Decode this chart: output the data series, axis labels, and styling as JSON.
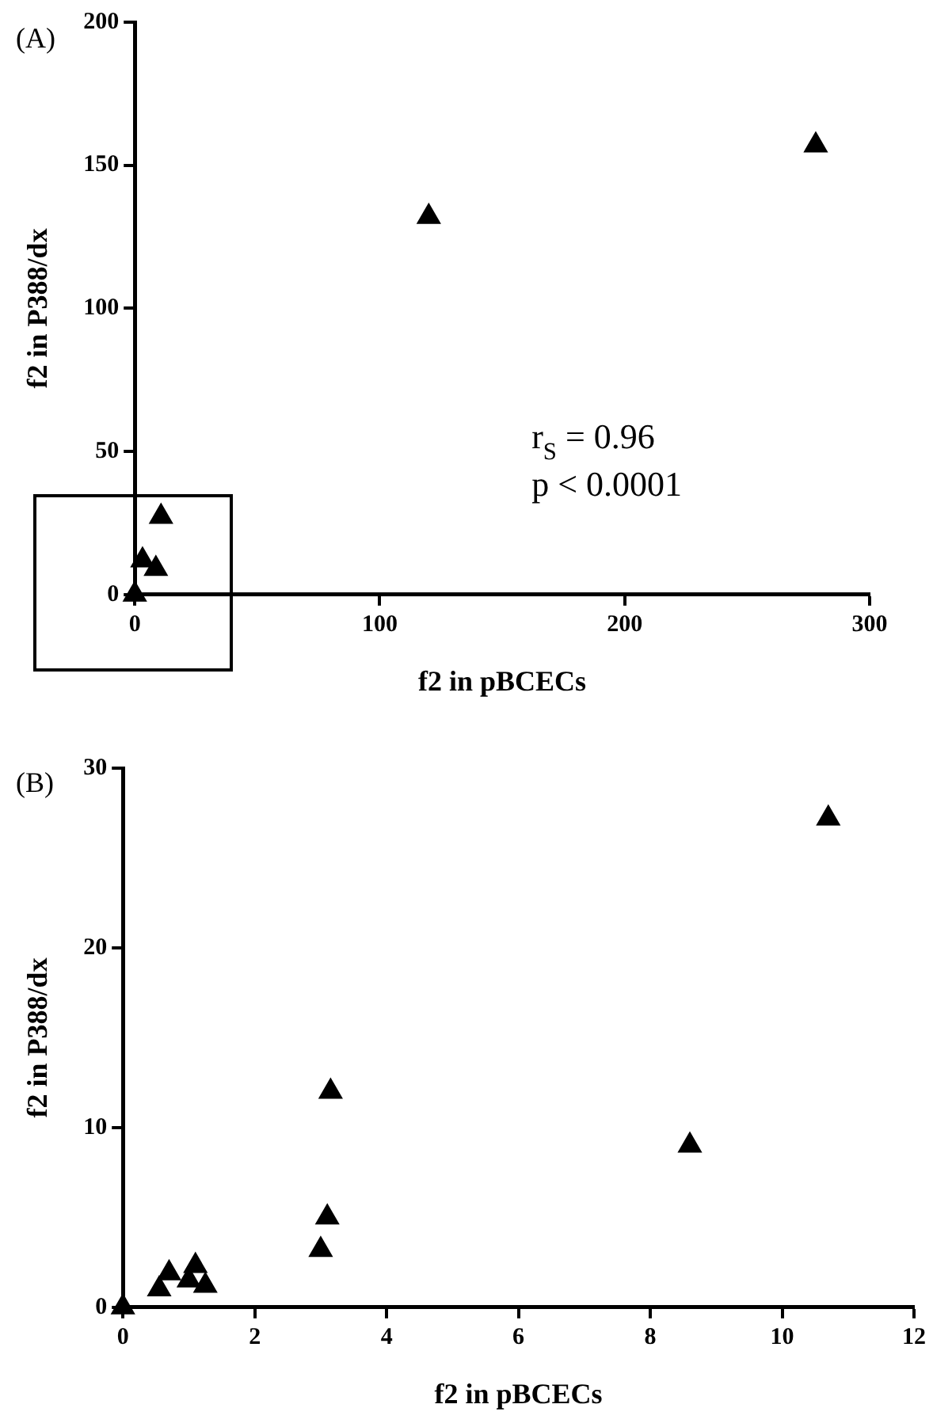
{
  "chart_data": [
    {
      "type": "scatter",
      "title": "(A)",
      "xlabel": "f2 in pBCECs",
      "ylabel": "f2 in P388/dx",
      "color": "#000000",
      "marker": "triangle",
      "x": [
        0,
        3.15,
        8.6,
        10.7,
        120,
        278
      ],
      "values": [
        0,
        12,
        9,
        27.2,
        132,
        157
      ],
      "xlim": [
        0,
        300
      ],
      "xticks": [
        0,
        100,
        200,
        300
      ],
      "ylim": [
        0,
        200
      ],
      "yticks": [
        0,
        50,
        100,
        150,
        200
      ],
      "annotations": [
        "r$_{S}$ = 0.96",
        "p < 0.0001"
      ]
    },
    {
      "type": "scatter",
      "title": "(B)",
      "xlabel": "f2 in pBCECs",
      "ylabel": "f2 in P388/dx",
      "color": "#000000",
      "marker": "triangle",
      "x": [
        0,
        0.55,
        0.7,
        1.0,
        1.1,
        1.25,
        3.0,
        3.1,
        3.15,
        8.6,
        10.7
      ],
      "values": [
        0,
        1.0,
        1.9,
        1.5,
        2.3,
        1.2,
        3.2,
        5.0,
        12,
        9,
        27.2
      ],
      "xlim": [
        0,
        12
      ],
      "xticks": [
        0,
        2,
        4,
        6,
        8,
        10,
        12
      ],
      "ylim": [
        0,
        30
      ],
      "yticks": [
        0,
        10,
        20,
        30
      ]
    }
  ]
}
